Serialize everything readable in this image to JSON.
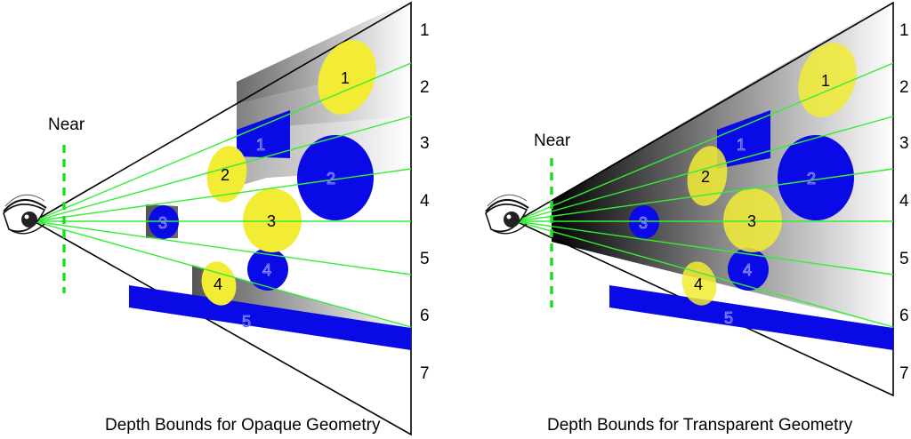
{
  "near_label": "Near",
  "panels": [
    {
      "caption": "Depth Bounds for Opaque Geometry",
      "slice_labels": [
        "1",
        "2",
        "3",
        "4",
        "5",
        "6",
        "7"
      ],
      "objects": {
        "yellow": [
          "1",
          "2",
          "3",
          "4"
        ],
        "blue": [
          "1",
          "2",
          "3",
          "4",
          "5"
        ]
      }
    },
    {
      "caption": "Depth Bounds for Transparent Geometry",
      "slice_labels": [
        "1",
        "2",
        "3",
        "4",
        "5",
        "6",
        "7"
      ],
      "objects": {
        "yellow": [
          "1",
          "2",
          "3",
          "4"
        ],
        "blue": [
          "1",
          "2",
          "3",
          "4",
          "5"
        ]
      }
    }
  ],
  "colors": {
    "ray": "#33ee33",
    "near_plane": "#22dd22",
    "yellow": "#f2ec35",
    "blue": "#0a0ae6",
    "frustum": "#000000"
  }
}
